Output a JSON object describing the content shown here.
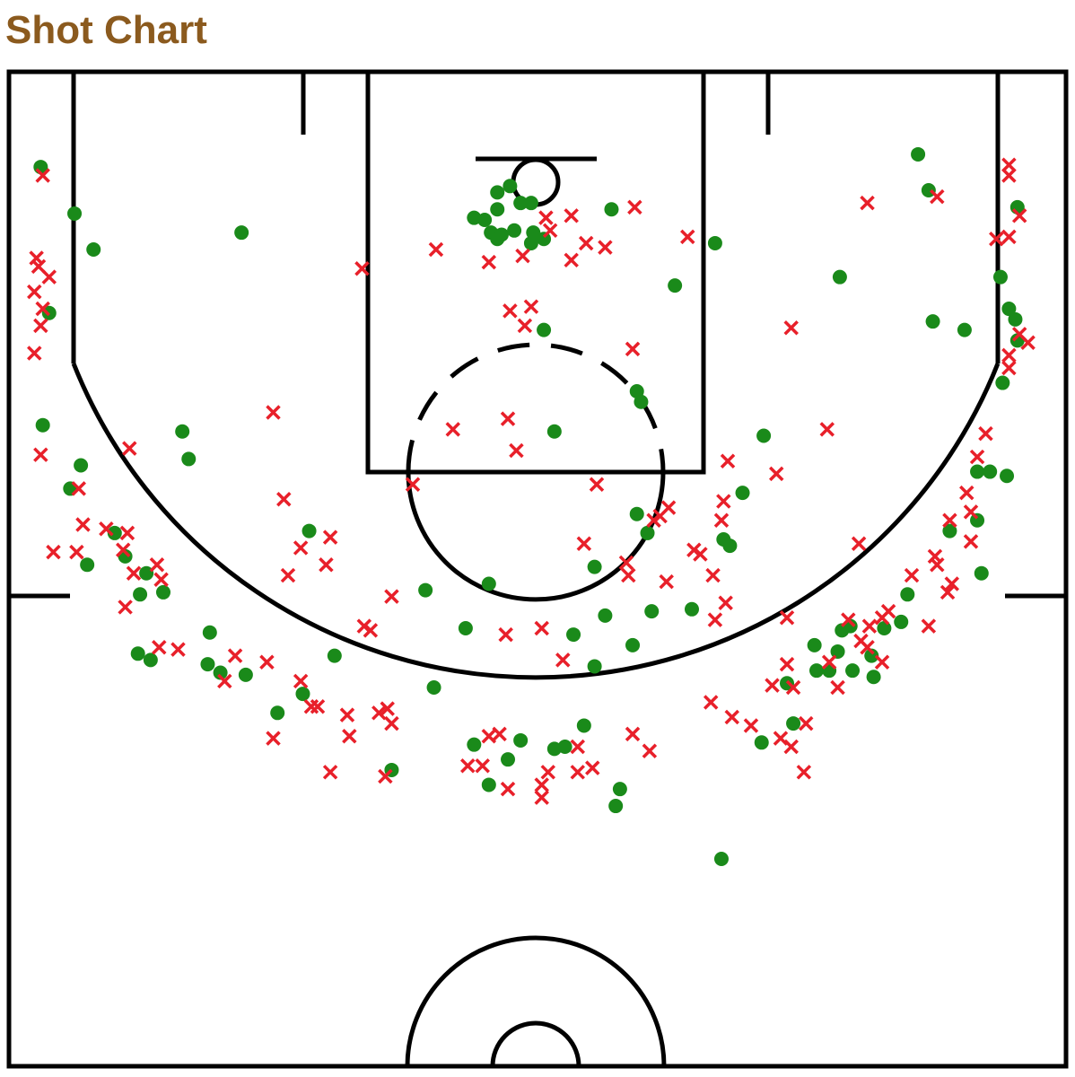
{
  "chart_data": {
    "type": "scatter",
    "title": "Shot Chart",
    "xlim": [
      0,
      50
    ],
    "ylim": [
      47,
      0
    ],
    "series": [
      {
        "color": "#1a8a1a",
        "marker": "circle",
        "x": [
          1.5,
          3.1,
          4.0,
          11.0,
          1.9,
          1.6,
          3.4,
          2.9,
          8.2,
          8.5,
          5.0,
          3.7,
          6.5,
          6.2,
          7.3,
          5.5,
          9.5,
          6.1,
          6.7,
          9.4,
          10.0,
          11.2,
          14.2,
          15.4,
          13.9,
          12.7,
          19.7,
          22.7,
          21.6,
          20.1,
          18.1,
          22.0,
          24.2,
          23.6,
          22.7,
          25.8,
          26.3,
          27.2,
          28.9,
          28.7,
          33.7,
          26.7,
          27.7,
          28.2,
          29.5,
          30.4,
          32.3,
          27.7,
          30.2,
          29.7,
          33.8,
          34.1,
          34.7,
          35.7,
          25.8,
          29.7,
          29.9,
          25.3,
          31.5,
          33.4,
          28.5,
          23.1,
          23.7,
          24.2,
          24.7,
          23.1,
          22.5,
          22.0,
          22.8,
          23.3,
          23.9,
          24.8,
          25.3,
          24.7,
          23.1,
          43.0,
          43.5,
          47.7,
          39.3,
          43.7,
          45.2,
          46.9,
          47.3,
          47.6,
          47.7,
          47.0,
          45.8,
          46.4,
          47.2,
          45.8,
          44.5,
          46.0,
          42.5,
          42.2,
          41.4,
          39.8,
          39.4,
          38.1,
          39.2,
          40.8,
          39.9,
          38.2,
          38.8,
          40.9,
          36.8,
          37.1,
          35.6
        ],
        "y": [
          4.5,
          6.7,
          8.4,
          7.6,
          11.4,
          16.7,
          18.6,
          19.7,
          17.0,
          18.3,
          21.8,
          23.3,
          23.7,
          24.7,
          24.6,
          22.9,
          26.5,
          27.5,
          27.8,
          28.0,
          28.4,
          28.5,
          21.7,
          27.6,
          29.4,
          30.3,
          24.5,
          24.2,
          26.3,
          29.1,
          33.0,
          31.8,
          31.6,
          32.5,
          33.7,
          32.0,
          31.9,
          30.9,
          33.9,
          34.7,
          37.2,
          26.6,
          28.1,
          25.7,
          27.1,
          25.5,
          25.4,
          23.4,
          21.8,
          20.9,
          22.1,
          22.4,
          19.9,
          17.2,
          17.0,
          15.1,
          15.6,
          12.2,
          10.1,
          8.1,
          6.5,
          5.7,
          5.4,
          6.2,
          6.2,
          6.5,
          7.0,
          6.9,
          7.6,
          7.7,
          7.5,
          7.6,
          7.9,
          8.1,
          7.9,
          3.9,
          5.6,
          6.4,
          9.7,
          11.8,
          12.2,
          9.7,
          11.2,
          11.7,
          12.7,
          14.7,
          18.9,
          18.9,
          19.1,
          21.2,
          21.7,
          23.7,
          24.7,
          26.0,
          26.3,
          26.2,
          26.4,
          27.1,
          27.4,
          27.6,
          28.3,
          28.3,
          28.3,
          28.6,
          28.9,
          30.8,
          31.7
        ]
      },
      {
        "color": "#e8202a",
        "marker": "x",
        "x": [
          1.6,
          1.3,
          1.4,
          1.9,
          1.2,
          1.6,
          1.5,
          1.2,
          1.5,
          3.3,
          3.5,
          2.1,
          3.2,
          4.6,
          5.6,
          5.4,
          5.9,
          7.0,
          7.2,
          5.5,
          7.1,
          8.0,
          5.7,
          12.5,
          13.0,
          13.8,
          15.2,
          15.0,
          13.2,
          10.7,
          10.2,
          12.2,
          13.8,
          14.3,
          14.6,
          16.0,
          16.1,
          12.5,
          15.2,
          17.5,
          17.9,
          18.1,
          17.8,
          16.8,
          17.1,
          18.1,
          19.1,
          16.7,
          20.2,
          21.0,
          23.6,
          24.0,
          23.7,
          24.7,
          24.4,
          22.7,
          24.3,
          25.4,
          26.6,
          25.6,
          27.3,
          28.2,
          26.6,
          29.6,
          32.1,
          29.5,
          27.8,
          27.2,
          29.2,
          29.3,
          31.1,
          30.5,
          31.2,
          30.8,
          32.4,
          32.7,
          33.3,
          33.9,
          33.4,
          33.7,
          33.8,
          34.0,
          36.3,
          38.7,
          37.0,
          40.6,
          43.9,
          47.3,
          47.3,
          46.7,
          47.3,
          47.8,
          47.8,
          48.2,
          47.3,
          47.3,
          46.2,
          45.8,
          45.3,
          45.5,
          44.5,
          45.5,
          43.8,
          43.9,
          42.7,
          44.6,
          44.4,
          43.5,
          40.2,
          41.6,
          41.3,
          40.7,
          40.3,
          40.6,
          39.7,
          41.3,
          39.2,
          38.8,
          36.8,
          36.8,
          36.1,
          37.1,
          37.7,
          36.5,
          37.0,
          37.6,
          33.2,
          34.2,
          35.1,
          29.5,
          30.3,
          26.2,
          25.2,
          23.5,
          22.7,
          23.2,
          21.7,
          22.4,
          23.6,
          25.2,
          25.2,
          25.5,
          26.9,
          26.9,
          27.6
        ],
        "y": [
          4.9,
          8.8,
          9.2,
          9.7,
          10.4,
          11.2,
          12.0,
          13.3,
          18.1,
          19.7,
          21.4,
          22.7,
          22.7,
          21.6,
          21.8,
          22.6,
          23.7,
          23.3,
          24.0,
          25.3,
          27.2,
          27.3,
          17.8,
          16.1,
          20.2,
          22.5,
          22.0,
          23.3,
          23.8,
          27.6,
          28.8,
          27.9,
          28.8,
          30.0,
          30.0,
          30.4,
          31.4,
          31.5,
          33.1,
          30.3,
          30.1,
          30.8,
          33.3,
          26.2,
          26.4,
          24.8,
          19.5,
          9.3,
          8.4,
          16.9,
          16.4,
          17.9,
          11.3,
          11.1,
          12.0,
          9.0,
          8.7,
          6.9,
          6.8,
          7.5,
          8.1,
          8.3,
          8.9,
          6.4,
          7.8,
          13.1,
          19.5,
          22.3,
          23.2,
          23.8,
          24.1,
          21.2,
          20.6,
          21.0,
          22.6,
          22.8,
          23.8,
          25.1,
          25.9,
          21.2,
          20.3,
          18.4,
          19.0,
          16.9,
          12.1,
          6.2,
          5.9,
          4.4,
          4.9,
          7.9,
          7.8,
          6.8,
          12.4,
          12.8,
          13.4,
          14.0,
          17.1,
          18.2,
          19.9,
          20.8,
          21.2,
          22.2,
          22.9,
          23.3,
          23.8,
          24.2,
          24.6,
          26.2,
          22.3,
          25.5,
          25.8,
          26.2,
          26.9,
          27.2,
          25.9,
          27.9,
          29.1,
          27.9,
          25.8,
          28.0,
          29.0,
          29.1,
          30.8,
          31.5,
          31.9,
          33.1,
          29.8,
          30.5,
          30.9,
          31.3,
          32.1,
          27.8,
          26.3,
          26.6,
          31.4,
          31.3,
          32.8,
          32.8,
          33.9,
          33.7,
          34.3,
          33.1,
          31.9,
          33.1,
          32.9
        ]
      }
    ]
  }
}
